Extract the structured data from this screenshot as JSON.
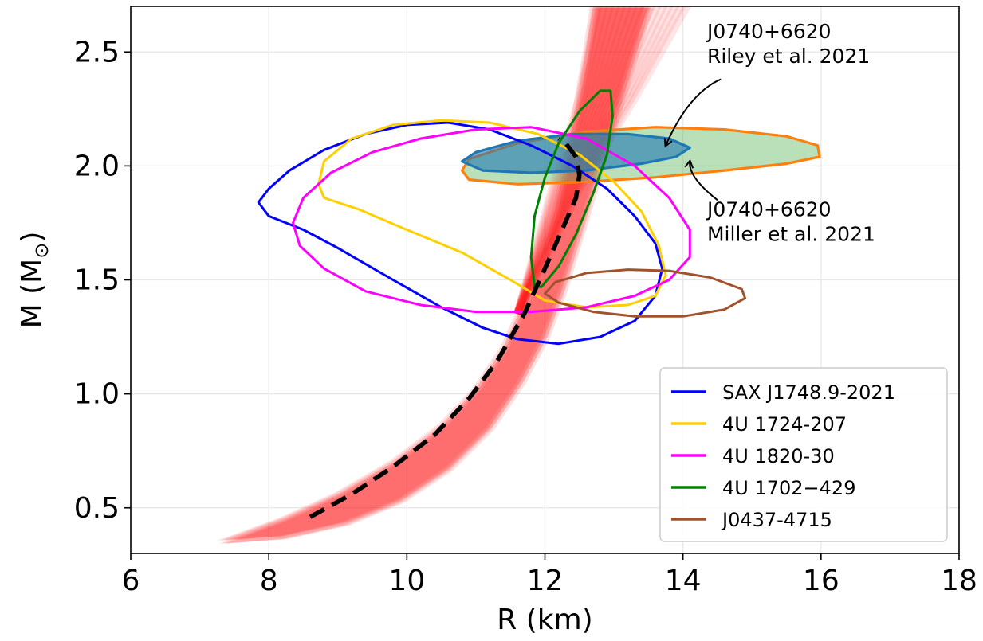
{
  "chart_data": {
    "type": "line",
    "xlabel": "R (km)",
    "ylabel_main": "M (M",
    "ylabel_sub": "⊙",
    "ylabel_close": ")",
    "xlim": [
      6,
      18
    ],
    "ylim": [
      0.3,
      2.7
    ],
    "xticks": [
      6,
      8,
      10,
      12,
      14,
      16,
      18
    ],
    "xtick_labels": [
      "6",
      "8",
      "10",
      "12",
      "14",
      "16",
      "18"
    ],
    "yticks": [
      0.5,
      1.0,
      1.5,
      2.0,
      2.5
    ],
    "ytick_labels": [
      "0.5",
      "1.0",
      "1.5",
      "2.0",
      "2.5"
    ],
    "grid": true,
    "legend_position": "lower-right",
    "contours": [
      {
        "name": "SAX J1748.9-2021",
        "color": "#0000ff",
        "points": [
          [
            7.85,
            1.84
          ],
          [
            8.0,
            1.9
          ],
          [
            8.3,
            1.98
          ],
          [
            8.8,
            2.07
          ],
          [
            9.4,
            2.14
          ],
          [
            10.0,
            2.18
          ],
          [
            10.6,
            2.19
          ],
          [
            11.2,
            2.16
          ],
          [
            11.8,
            2.09
          ],
          [
            12.4,
            2.0
          ],
          [
            12.9,
            1.9
          ],
          [
            13.3,
            1.78
          ],
          [
            13.6,
            1.66
          ],
          [
            13.7,
            1.55
          ],
          [
            13.6,
            1.43
          ],
          [
            13.3,
            1.32
          ],
          [
            12.8,
            1.25
          ],
          [
            12.2,
            1.22
          ],
          [
            11.6,
            1.24
          ],
          [
            11.1,
            1.29
          ],
          [
            10.5,
            1.38
          ],
          [
            9.8,
            1.5
          ],
          [
            9.0,
            1.64
          ],
          [
            8.5,
            1.72
          ],
          [
            8.0,
            1.78
          ],
          [
            7.85,
            1.84
          ]
        ]
      },
      {
        "name": "4U 1724-207",
        "color": "#ffd000",
        "points": [
          [
            8.72,
            1.92
          ],
          [
            8.8,
            2.02
          ],
          [
            9.2,
            2.12
          ],
          [
            9.8,
            2.18
          ],
          [
            10.5,
            2.2
          ],
          [
            11.2,
            2.19
          ],
          [
            11.9,
            2.14
          ],
          [
            12.5,
            2.05
          ],
          [
            13.0,
            1.93
          ],
          [
            13.4,
            1.8
          ],
          [
            13.65,
            1.65
          ],
          [
            13.75,
            1.52
          ],
          [
            13.6,
            1.43
          ],
          [
            13.2,
            1.39
          ],
          [
            12.6,
            1.38
          ],
          [
            12.0,
            1.41
          ],
          [
            11.5,
            1.5
          ],
          [
            10.8,
            1.62
          ],
          [
            10.0,
            1.72
          ],
          [
            9.3,
            1.81
          ],
          [
            8.8,
            1.86
          ],
          [
            8.72,
            1.92
          ]
        ]
      },
      {
        "name": "4U 1820-30",
        "color": "#ff00ff",
        "points": [
          [
            8.35,
            1.75
          ],
          [
            8.5,
            1.86
          ],
          [
            8.9,
            1.97
          ],
          [
            9.5,
            2.06
          ],
          [
            10.2,
            2.12
          ],
          [
            11.0,
            2.16
          ],
          [
            11.8,
            2.17
          ],
          [
            12.6,
            2.12
          ],
          [
            13.3,
            2.0
          ],
          [
            13.8,
            1.86
          ],
          [
            14.1,
            1.72
          ],
          [
            14.1,
            1.6
          ],
          [
            13.8,
            1.5
          ],
          [
            13.3,
            1.43
          ],
          [
            12.6,
            1.38
          ],
          [
            11.8,
            1.36
          ],
          [
            11.0,
            1.36
          ],
          [
            10.2,
            1.39
          ],
          [
            9.4,
            1.45
          ],
          [
            8.8,
            1.55
          ],
          [
            8.45,
            1.65
          ],
          [
            8.35,
            1.75
          ]
        ]
      },
      {
        "name": "4U 1702−429",
        "color": "#008000",
        "points": [
          [
            11.85,
            1.47
          ],
          [
            11.8,
            1.6
          ],
          [
            11.85,
            1.78
          ],
          [
            12.0,
            1.95
          ],
          [
            12.2,
            2.1
          ],
          [
            12.5,
            2.24
          ],
          [
            12.8,
            2.33
          ],
          [
            12.95,
            2.33
          ],
          [
            12.98,
            2.22
          ],
          [
            12.9,
            2.05
          ],
          [
            12.7,
            1.88
          ],
          [
            12.45,
            1.7
          ],
          [
            12.2,
            1.56
          ],
          [
            11.95,
            1.47
          ],
          [
            11.85,
            1.47
          ]
        ]
      },
      {
        "name": "J0437-4715",
        "color": "#a0522d",
        "points": [
          [
            12.0,
            1.44
          ],
          [
            12.15,
            1.49
          ],
          [
            12.6,
            1.53
          ],
          [
            13.2,
            1.545
          ],
          [
            13.8,
            1.54
          ],
          [
            14.4,
            1.51
          ],
          [
            14.85,
            1.46
          ],
          [
            14.9,
            1.42
          ],
          [
            14.6,
            1.37
          ],
          [
            14.0,
            1.34
          ],
          [
            13.3,
            1.34
          ],
          [
            12.7,
            1.36
          ],
          [
            12.2,
            1.4
          ],
          [
            12.0,
            1.44
          ]
        ]
      }
    ],
    "filled_regions": [
      {
        "name": "J0740+6620 Miller et al. 2021",
        "stroke": "#ff7f0e",
        "fill": "#66bb66",
        "points": [
          [
            10.8,
            1.98
          ],
          [
            10.9,
            2.03
          ],
          [
            11.6,
            2.1
          ],
          [
            12.6,
            2.15
          ],
          [
            13.6,
            2.17
          ],
          [
            14.6,
            2.16
          ],
          [
            15.5,
            2.13
          ],
          [
            15.95,
            2.09
          ],
          [
            15.98,
            2.04
          ],
          [
            15.5,
            2.01
          ],
          [
            14.6,
            1.98
          ],
          [
            13.6,
            1.95
          ],
          [
            12.6,
            1.93
          ],
          [
            11.6,
            1.92
          ],
          [
            10.9,
            1.94
          ],
          [
            10.8,
            1.98
          ]
        ]
      },
      {
        "name": "J0740+6620 Riley et al. 2021",
        "stroke": "#1f77b4",
        "fill": "#1f77b4",
        "points": [
          [
            10.8,
            2.02
          ],
          [
            11.0,
            2.06
          ],
          [
            11.6,
            2.11
          ],
          [
            12.4,
            2.14
          ],
          [
            13.2,
            2.14
          ],
          [
            13.8,
            2.12
          ],
          [
            14.1,
            2.08
          ],
          [
            13.9,
            2.04
          ],
          [
            13.4,
            2.01
          ],
          [
            12.6,
            1.98
          ],
          [
            11.8,
            1.97
          ],
          [
            11.1,
            1.98
          ],
          [
            10.8,
            2.02
          ]
        ]
      }
    ],
    "dashed_curve": {
      "color": "#000000",
      "points": [
        [
          8.6,
          0.46
        ],
        [
          9.2,
          0.56
        ],
        [
          9.8,
          0.68
        ],
        [
          10.4,
          0.82
        ],
        [
          10.9,
          0.98
        ],
        [
          11.3,
          1.14
        ],
        [
          11.7,
          1.35
        ],
        [
          12.0,
          1.55
        ],
        [
          12.25,
          1.72
        ],
        [
          12.45,
          1.86
        ],
        [
          12.5,
          1.96
        ],
        [
          12.45,
          2.04
        ],
        [
          12.3,
          2.1
        ],
        [
          12.2,
          2.12
        ]
      ]
    },
    "band": {
      "color": "#ff0000",
      "left_edge": [
        [
          7.3,
          0.35
        ],
        [
          8.2,
          0.45
        ],
        [
          9.0,
          0.56
        ],
        [
          9.8,
          0.7
        ],
        [
          10.5,
          0.86
        ],
        [
          11.0,
          1.02
        ],
        [
          11.4,
          1.2
        ],
        [
          11.7,
          1.4
        ],
        [
          11.95,
          1.6
        ],
        [
          12.15,
          1.8
        ],
        [
          12.3,
          2.0
        ],
        [
          12.45,
          2.25
        ],
        [
          12.6,
          2.5
        ],
        [
          12.7,
          2.7
        ]
      ],
      "right_edge": [
        [
          13.5,
          2.7
        ],
        [
          13.25,
          2.45
        ],
        [
          13.0,
          2.2
        ],
        [
          12.75,
          1.95
        ],
        [
          12.5,
          1.7
        ],
        [
          12.25,
          1.45
        ],
        [
          12.0,
          1.25
        ],
        [
          11.65,
          1.05
        ],
        [
          11.2,
          0.85
        ],
        [
          10.6,
          0.67
        ],
        [
          9.9,
          0.53
        ],
        [
          9.1,
          0.43
        ],
        [
          8.2,
          0.37
        ],
        [
          7.3,
          0.35
        ]
      ],
      "fan_right": [
        [
          13.2,
          2.7
        ],
        [
          13.8,
          2.7
        ],
        [
          14.0,
          2.7
        ],
        [
          14.1,
          2.7
        ]
      ]
    },
    "legend": [
      {
        "label": "SAX J1748.9-2021",
        "color": "#0000ff"
      },
      {
        "label": "4U 1724-207",
        "color": "#ffd000"
      },
      {
        "label": "4U 1820-30",
        "color": "#ff00ff"
      },
      {
        "label": "4U 1702−429",
        "color": "#008000"
      },
      {
        "label": "J0437-4715",
        "color": "#a0522d"
      }
    ],
    "annotations": [
      {
        "line1": "J0740+6620",
        "line2": "Riley et al. 2021",
        "text_x": 14.35,
        "text_y": 2.56,
        "arrow_from": [
          14.55,
          2.38
        ],
        "arrow_to": [
          13.75,
          2.09
        ]
      },
      {
        "line1": "J0740+6620",
        "line2": "Miller et al. 2021",
        "text_x": 14.35,
        "text_y": 1.78,
        "arrow_from": [
          14.5,
          1.85
        ],
        "arrow_to": [
          14.1,
          2.02
        ]
      }
    ]
  }
}
